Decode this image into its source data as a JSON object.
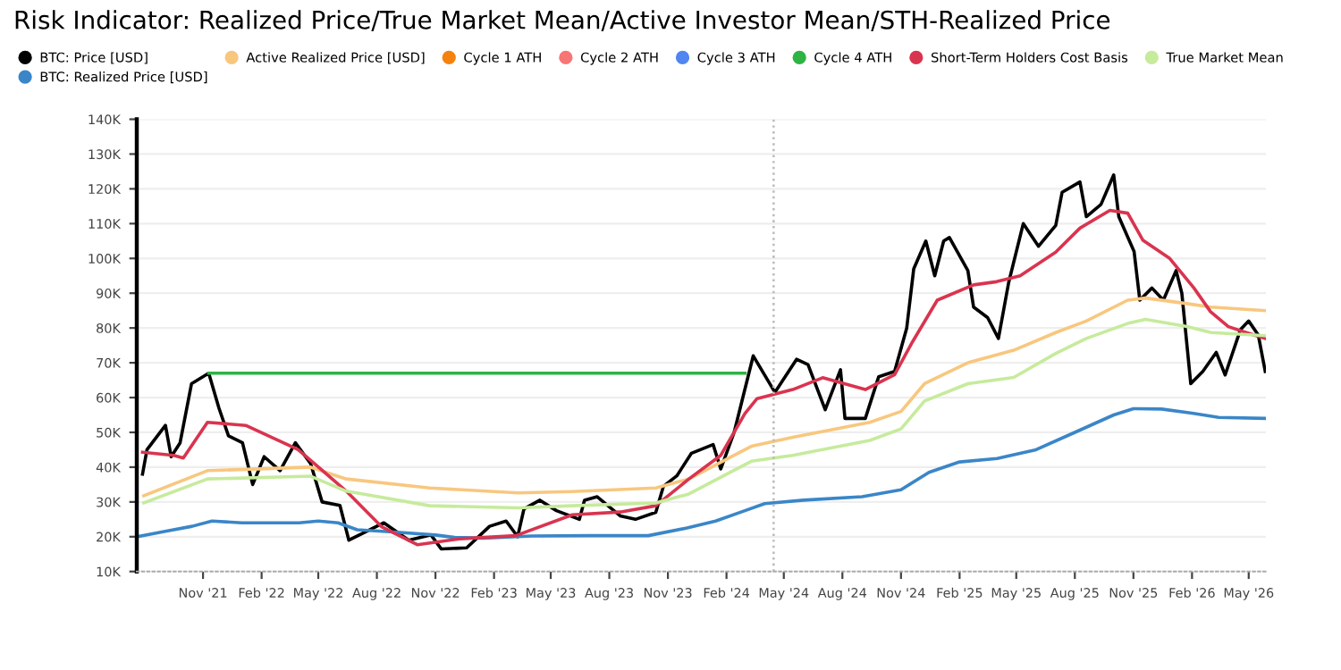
{
  "chart_data": {
    "type": "line",
    "title": "Risk Indicator: Realized Price/True Market Mean/Active Investor Mean/STH-Realized Price",
    "legend": "top left",
    "grid": "y",
    "marker": "none",
    "line_style": "solid",
    "xlim": [
      "2021-07-20",
      "2026-05-28"
    ],
    "xticks": [
      {
        "value": "2021-11-01",
        "label": "Nov '21"
      },
      {
        "value": "2022-02-01",
        "label": "Feb '22"
      },
      {
        "value": "2022-05-01",
        "label": "May '22"
      },
      {
        "value": "2022-08-01",
        "label": "Aug '22"
      },
      {
        "value": "2022-11-01",
        "label": "Nov '22"
      },
      {
        "value": "2023-02-01",
        "label": "Feb '23"
      },
      {
        "value": "2023-05-01",
        "label": "May '23"
      },
      {
        "value": "2023-08-01",
        "label": "Aug '23"
      },
      {
        "value": "2023-11-01",
        "label": "Nov '23"
      },
      {
        "value": "2024-02-01",
        "label": "Feb '24"
      },
      {
        "value": "2024-05-01",
        "label": "May '24"
      },
      {
        "value": "2024-08-01",
        "label": "Aug '24"
      },
      {
        "value": "2024-11-01",
        "label": "Nov '24"
      },
      {
        "value": "2025-02-01",
        "label": "Feb '25"
      },
      {
        "value": "2025-05-01",
        "label": "May '25"
      },
      {
        "value": "2025-08-01",
        "label": "Aug '25"
      },
      {
        "value": "2025-11-01",
        "label": "Nov '25"
      },
      {
        "value": "2026-02-01",
        "label": "Feb '26"
      },
      {
        "value": "2026-05-01",
        "label": "May '26"
      }
    ],
    "ylim": [
      10000,
      140000
    ],
    "yticks": [
      {
        "value": 10000,
        "label": "10K"
      },
      {
        "value": 20000,
        "label": "20K"
      },
      {
        "value": 30000,
        "label": "30K"
      },
      {
        "value": 40000,
        "label": "40K"
      },
      {
        "value": 50000,
        "label": "50K"
      },
      {
        "value": 60000,
        "label": "60K"
      },
      {
        "value": 70000,
        "label": "70K"
      },
      {
        "value": 80000,
        "label": "80K"
      },
      {
        "value": 90000,
        "label": "90K"
      },
      {
        "value": 100000,
        "label": "100K"
      },
      {
        "value": 110000,
        "label": "110K"
      },
      {
        "value": 120000,
        "label": "120K"
      },
      {
        "value": 130000,
        "label": "130K"
      },
      {
        "value": 140000,
        "label": "140K"
      }
    ],
    "ref_lines": [
      {
        "axis": "x",
        "value": "2024-04-15",
        "color": "#bbbbbb",
        "line_style": "dotted"
      }
    ],
    "series": [
      {
        "name": "BTC: Price [USD]",
        "color": "#000000",
        "x": [
          "2021-07-29",
          "2021-08-05",
          "2021-09-03",
          "2021-09-12",
          "2021-09-26",
          "2021-10-14",
          "2021-11-10",
          "2021-11-26",
          "2021-12-11",
          "2022-01-02",
          "2022-01-18",
          "2022-02-05",
          "2022-03-02",
          "2022-03-26",
          "2022-04-19",
          "2022-05-07",
          "2022-06-04",
          "2022-06-18",
          "2022-07-10",
          "2022-08-12",
          "2022-09-20",
          "2022-10-25",
          "2022-11-10",
          "2022-12-20",
          "2023-01-25",
          "2023-02-20",
          "2023-03-10",
          "2023-03-20",
          "2023-04-14",
          "2023-05-10",
          "2023-06-15",
          "2023-06-23",
          "2023-07-13",
          "2023-08-18",
          "2023-09-11",
          "2023-10-13",
          "2023-10-25",
          "2023-11-15",
          "2023-12-08",
          "2024-01-11",
          "2024-01-23",
          "2024-02-13",
          "2024-03-14",
          "2024-04-17",
          "2024-05-21",
          "2024-06-08",
          "2024-07-05",
          "2024-07-29",
          "2024-08-05",
          "2024-09-06",
          "2024-09-27",
          "2024-10-22",
          "2024-11-10",
          "2024-11-21",
          "2024-12-10",
          "2024-12-24",
          "2025-01-07",
          "2025-01-16",
          "2025-02-14",
          "2025-02-23",
          "2025-03-17",
          "2025-04-03",
          "2025-04-19",
          "2025-05-12",
          "2025-06-05",
          "2025-07-02",
          "2025-07-12",
          "2025-08-09",
          "2025-08-19",
          "2025-09-11",
          "2025-10-01",
          "2025-10-09",
          "2025-11-02",
          "2025-11-11",
          "2025-11-30",
          "2025-12-18",
          "2026-01-07",
          "2026-01-16",
          "2026-01-30",
          "2026-02-18",
          "2026-03-11",
          "2026-03-25",
          "2026-04-18",
          "2026-05-01",
          "2026-05-16",
          "2026-05-27"
        ],
        "values": [
          38000,
          45000,
          52000,
          43000,
          47000,
          64000,
          67000,
          57000,
          49000,
          47000,
          35000,
          43000,
          39000,
          47000,
          41000,
          30000,
          29000,
          19000,
          21000,
          24000,
          19000,
          20500,
          16500,
          16800,
          23000,
          24500,
          20000,
          28000,
          30500,
          27500,
          25000,
          30500,
          31500,
          26000,
          25000,
          27000,
          34500,
          37500,
          44000,
          46500,
          39500,
          50000,
          72000,
          61500,
          71000,
          69500,
          56500,
          68000,
          54000,
          54000,
          66000,
          67500,
          80000,
          97000,
          105000,
          95000,
          105000,
          106000,
          96500,
          86000,
          83000,
          77000,
          93000,
          110000,
          103500,
          109500,
          119000,
          122000,
          112000,
          115500,
          124000,
          112000,
          102000,
          88000,
          91500,
          88000,
          96500,
          90000,
          64000,
          67500,
          73000,
          66500,
          79500,
          82000,
          78000,
          67500
        ]
      },
      {
        "name": "BTC: Realized Price [USD]",
        "color": "#3a86c8",
        "x": [
          "2021-07-20",
          "2021-09-01",
          "2021-10-15",
          "2021-11-15",
          "2022-01-01",
          "2022-04-01",
          "2022-05-01",
          "2022-06-01",
          "2022-07-01",
          "2022-09-01",
          "2022-11-01",
          "2022-12-01",
          "2023-01-15",
          "2023-04-01",
          "2023-07-01",
          "2023-10-01",
          "2023-12-01",
          "2024-01-15",
          "2024-03-01",
          "2024-04-01",
          "2024-06-01",
          "2024-09-01",
          "2024-11-01",
          "2024-12-15",
          "2025-02-01",
          "2025-04-01",
          "2025-06-01",
          "2025-08-01",
          "2025-10-01",
          "2025-11-01",
          "2025-12-15",
          "2026-02-01",
          "2026-03-15",
          "2026-05-27"
        ],
        "values": [
          20000,
          21500,
          23000,
          24500,
          24000,
          24000,
          24500,
          24000,
          22000,
          21300,
          20500,
          19800,
          19600,
          20200,
          20300,
          20300,
          22500,
          24500,
          27500,
          29500,
          30500,
          31500,
          33500,
          38500,
          41500,
          42500,
          45000,
          50000,
          55000,
          56800,
          56700,
          55500,
          54300,
          54000
        ]
      },
      {
        "name": "Active Realized Price [USD]",
        "color": "#f8c77e",
        "x": [
          "2021-07-31",
          "2021-11-08",
          "2022-04-19",
          "2022-06-14",
          "2022-10-23",
          "2023-03-11",
          "2023-06-04",
          "2023-10-13",
          "2023-12-04",
          "2024-02-13",
          "2024-03-11",
          "2024-05-15",
          "2024-09-13",
          "2024-11-01",
          "2024-12-08",
          "2025-02-14",
          "2025-04-27",
          "2025-07-02",
          "2025-08-19",
          "2025-10-23",
          "2025-11-20",
          "2026-01-24",
          "2026-03-03",
          "2026-05-27"
        ],
        "values": [
          31800,
          39000,
          40000,
          36600,
          34000,
          32600,
          33000,
          34000,
          36600,
          43400,
          46000,
          48600,
          52900,
          56000,
          64000,
          70000,
          73600,
          78700,
          82000,
          88000,
          88600,
          87000,
          86000,
          85000
        ]
      },
      {
        "name": "Cycle 1 ATH",
        "color": "#f5820d"
      },
      {
        "name": "Cycle 2 ATH",
        "color": "#f87575"
      },
      {
        "name": "Cycle 3 ATH",
        "color": "#4f86f0"
      },
      {
        "name": "Cycle 4 ATH",
        "color": "#2fb344",
        "x": [
          "2021-11-10",
          "2024-03-01"
        ],
        "values": [
          67000,
          67000
        ]
      },
      {
        "name": "Short-Term Holders Cost Basis",
        "color": "#d9344f",
        "x": [
          "2021-07-29",
          "2021-09-16",
          "2021-10-01",
          "2021-11-08",
          "2022-01-07",
          "2022-03-30",
          "2022-05-07",
          "2022-06-14",
          "2022-08-09",
          "2022-10-04",
          "2022-12-09",
          "2023-03-07",
          "2023-06-04",
          "2023-08-18",
          "2023-10-13",
          "2023-12-04",
          "2024-01-23",
          "2024-03-01",
          "2024-03-20",
          "2024-05-15",
          "2024-07-01",
          "2024-09-06",
          "2024-10-22",
          "2024-11-19",
          "2024-12-28",
          "2025-02-23",
          "2025-03-31",
          "2025-05-07",
          "2025-07-02",
          "2025-08-09",
          "2025-09-25",
          "2025-10-23",
          "2025-11-16",
          "2025-12-28",
          "2026-02-04",
          "2026-03-02",
          "2026-03-30",
          "2026-04-27",
          "2026-05-27"
        ],
        "values": [
          44300,
          43400,
          42600,
          52900,
          52000,
          45100,
          39100,
          33100,
          22800,
          17700,
          19400,
          20300,
          26300,
          27100,
          28900,
          36600,
          43400,
          55400,
          59700,
          62300,
          65700,
          62300,
          66600,
          76000,
          88000,
          92400,
          93300,
          95000,
          101800,
          108700,
          113800,
          113000,
          105200,
          100000,
          91500,
          84700,
          80400,
          78700,
          77000
        ]
      },
      {
        "name": "True Market Mean",
        "color": "#c6eb9c",
        "x": [
          "2021-07-31",
          "2021-11-08",
          "2022-04-19",
          "2022-06-14",
          "2022-10-23",
          "2023-03-11",
          "2023-06-04",
          "2023-10-13",
          "2023-12-04",
          "2024-02-13",
          "2024-03-11",
          "2024-05-15",
          "2024-09-13",
          "2024-11-01",
          "2024-12-08",
          "2025-02-14",
          "2025-04-27",
          "2025-07-02",
          "2025-08-19",
          "2025-10-23",
          "2025-11-20",
          "2026-01-24",
          "2026-03-03",
          "2026-05-27"
        ],
        "values": [
          29700,
          36600,
          37400,
          33100,
          28900,
          28300,
          28900,
          29700,
          32300,
          39100,
          41700,
          43400,
          47700,
          51000,
          59000,
          64000,
          65800,
          72700,
          77000,
          81300,
          82500,
          80400,
          78700,
          77800
        ]
      }
    ]
  }
}
